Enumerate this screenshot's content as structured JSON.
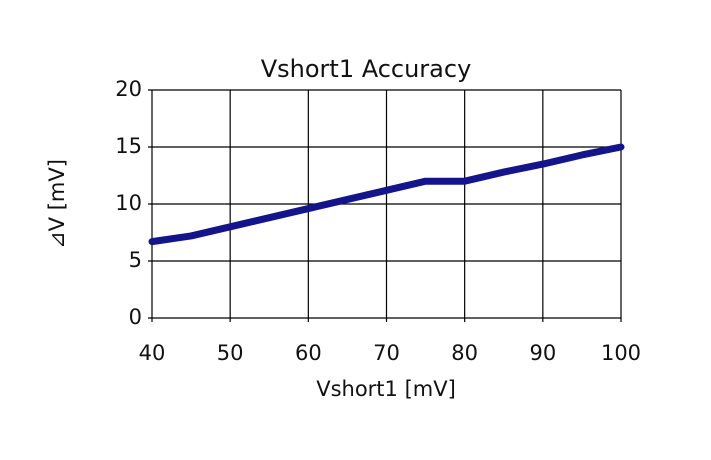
{
  "chart_data": {
    "type": "line",
    "title": "Vshort1 Accuracy",
    "x_label": "Vshort1 [mV]",
    "y_label": "⊿V [mV]",
    "x": [
      40,
      45,
      50,
      55,
      60,
      65,
      70,
      75,
      80,
      85,
      90,
      95,
      100
    ],
    "series": [
      {
        "name": "Vshort1 Accuracy",
        "color": "#14148c",
        "values": [
          6.7,
          7.2,
          8.0,
          8.8,
          9.6,
          10.4,
          11.2,
          12.0,
          12.0,
          12.8,
          13.5,
          14.3,
          15.0
        ]
      }
    ],
    "xlim": [
      40,
      100
    ],
    "xticks": [
      40,
      50,
      60,
      70,
      80,
      90,
      100
    ],
    "ylim": [
      0,
      20
    ],
    "yticks": [
      0,
      5,
      10,
      15,
      20
    ],
    "grid": true
  }
}
